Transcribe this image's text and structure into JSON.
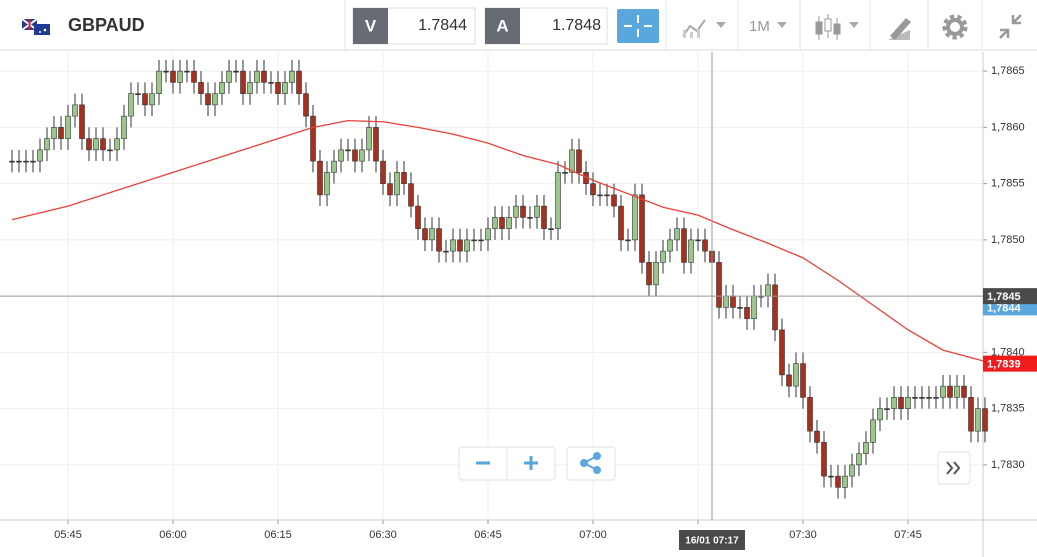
{
  "header": {
    "symbol": "GBPAUD",
    "sell_label": "V",
    "sell_price": "1.7844",
    "buy_label": "A",
    "buy_price": "1.7848",
    "timeframe": "1M"
  },
  "chart_data": {
    "type": "candlestick",
    "up_color": "#9cc78c",
    "down_color": "#a8301f",
    "ma_color": "#e8413a",
    "ylim": [
      1.78251,
      1.78667
    ],
    "yticks": [
      {
        "value": 1.783,
        "label": "1,7830"
      },
      {
        "value": 1.7835,
        "label": "1,7835"
      },
      {
        "value": 1.784,
        "label": "1,7840"
      },
      {
        "value": 1.7845,
        "label": "1,7845"
      },
      {
        "value": 1.785,
        "label": "1,7850"
      },
      {
        "value": 1.7855,
        "label": "1,7855"
      },
      {
        "value": 1.786,
        "label": "1,7860"
      },
      {
        "value": 1.7865,
        "label": "1,7865"
      }
    ],
    "xticks": [
      "05:45",
      "06:00",
      "06:15",
      "06:30",
      "06:45",
      "07:00",
      "07:15",
      "07:30",
      "07:45"
    ],
    "grid": true,
    "categories": [
      "05:37",
      "05:38",
      "05:39",
      "05:40",
      "05:41",
      "05:42",
      "05:43",
      "05:44",
      "05:45",
      "05:46",
      "05:47",
      "05:48",
      "05:49",
      "05:50",
      "05:51",
      "05:52",
      "05:53",
      "05:54",
      "05:55",
      "05:56",
      "05:57",
      "05:58",
      "05:59",
      "06:00",
      "06:01",
      "06:02",
      "06:03",
      "06:04",
      "06:05",
      "06:06",
      "06:07",
      "06:08",
      "06:09",
      "06:10",
      "06:11",
      "06:12",
      "06:13",
      "06:14",
      "06:15",
      "06:16",
      "06:17",
      "06:18",
      "06:19",
      "06:20",
      "06:21",
      "06:22",
      "06:23",
      "06:24",
      "06:25",
      "06:26",
      "06:27",
      "06:28",
      "06:29",
      "06:30",
      "06:31",
      "06:32",
      "06:33",
      "06:34",
      "06:35",
      "06:36",
      "06:37",
      "06:38",
      "06:39",
      "06:40",
      "06:41",
      "06:42",
      "06:43",
      "06:44",
      "06:45",
      "06:46",
      "06:47",
      "06:48",
      "06:49",
      "06:50",
      "06:51",
      "06:52",
      "06:53",
      "06:54",
      "06:55",
      "06:56",
      "06:57",
      "06:58",
      "06:59",
      "07:00",
      "07:01",
      "07:02",
      "07:03",
      "07:04",
      "07:05",
      "07:06",
      "07:07",
      "07:08",
      "07:09",
      "07:10",
      "07:11",
      "07:12",
      "07:13",
      "07:14",
      "07:15",
      "07:16",
      "07:17",
      "07:18",
      "07:19",
      "07:20",
      "07:21",
      "07:22",
      "07:23",
      "07:24",
      "07:25",
      "07:26",
      "07:27",
      "07:28",
      "07:29",
      "07:30",
      "07:31",
      "07:32",
      "07:33",
      "07:34",
      "07:35",
      "07:36",
      "07:37",
      "07:38",
      "07:39",
      "07:40",
      "07:41",
      "07:42",
      "07:43",
      "07:44",
      "07:45",
      "07:46",
      "07:47",
      "07:48",
      "07:49",
      "07:50",
      "07:51",
      "07:52",
      "07:53",
      "07:54",
      "07:55",
      "07:56"
    ],
    "open": [
      1.7857,
      1.7857,
      1.7857,
      1.7857,
      1.7857,
      1.7858,
      1.7859,
      1.786,
      1.7859,
      1.7861,
      1.7862,
      1.7859,
      1.7858,
      1.7859,
      1.7858,
      1.7858,
      1.7859,
      1.7861,
      1.7863,
      1.7863,
      1.7862,
      1.7863,
      1.7865,
      1.7865,
      1.7864,
      1.7865,
      1.7865,
      1.7864,
      1.7863,
      1.7862,
      1.7863,
      1.7864,
      1.7865,
      1.7865,
      1.7863,
      1.7864,
      1.7865,
      1.7864,
      1.7864,
      1.7863,
      1.7864,
      1.7865,
      1.7863,
      1.7861,
      1.7857,
      1.7854,
      1.7856,
      1.7857,
      1.7858,
      1.7858,
      1.7857,
      1.7858,
      1.786,
      1.7857,
      1.7855,
      1.7854,
      1.7856,
      1.7855,
      1.7853,
      1.7851,
      1.785,
      1.7851,
      1.7849,
      1.7849,
      1.785,
      1.7849,
      1.785,
      1.785,
      1.785,
      1.7851,
      1.7852,
      1.7851,
      1.7852,
      1.7853,
      1.7852,
      1.7852,
      1.7853,
      1.7851,
      1.7851,
      1.7856,
      1.7856,
      1.7858,
      1.7856,
      1.7855,
      1.7854,
      1.7854,
      1.7854,
      1.7853,
      1.785,
      1.785,
      1.7854,
      1.7848,
      1.7846,
      1.7848,
      1.7849,
      1.785,
      1.7851,
      1.7848,
      1.785,
      1.785,
      1.7849,
      1.7848,
      1.7844,
      1.7845,
      1.7844,
      1.7844,
      1.7843,
      1.7845,
      1.7845,
      1.7846,
      1.7842,
      1.7838,
      1.7837,
      1.7839,
      1.7836,
      1.7833,
      1.7832,
      1.7829,
      1.7829,
      1.7828,
      1.7829,
      1.783,
      1.7831,
      1.7832,
      1.7834,
      1.7835,
      1.7835,
      1.7836,
      1.7835,
      1.7836,
      1.7836,
      1.7836,
      1.7836,
      1.7836,
      1.7837,
      1.7836,
      1.7837,
      1.7836,
      1.7833,
      1.7835
    ],
    "high": [
      1.7858,
      1.7858,
      1.7858,
      1.7858,
      1.7859,
      1.786,
      1.7861,
      1.7861,
      1.7862,
      1.7863,
      1.7863,
      1.786,
      1.786,
      1.786,
      1.7859,
      1.786,
      1.7862,
      1.7864,
      1.7864,
      1.7864,
      1.7864,
      1.7866,
      1.7866,
      1.7866,
      1.7866,
      1.7866,
      1.7866,
      1.7865,
      1.7864,
      1.7864,
      1.7865,
      1.7866,
      1.7866,
      1.7866,
      1.7865,
      1.7866,
      1.7866,
      1.7865,
      1.7865,
      1.7865,
      1.7866,
      1.7866,
      1.7864,
      1.7862,
      1.7858,
      1.7857,
      1.7858,
      1.7859,
      1.7859,
      1.7859,
      1.7859,
      1.7861,
      1.7861,
      1.7858,
      1.7856,
      1.7857,
      1.7857,
      1.7856,
      1.7854,
      1.7852,
      1.7852,
      1.7852,
      1.785,
      1.7851,
      1.7851,
      1.7851,
      1.7851,
      1.7851,
      1.7852,
      1.7853,
      1.7853,
      1.7853,
      1.7854,
      1.7854,
      1.7853,
      1.7854,
      1.7854,
      1.7852,
      1.7857,
      1.7857,
      1.7859,
      1.7859,
      1.7857,
      1.7856,
      1.7855,
      1.7855,
      1.7855,
      1.7854,
      1.7851,
      1.7855,
      1.7855,
      1.7849,
      1.7849,
      1.785,
      1.7851,
      1.7852,
      1.7852,
      1.7851,
      1.7851,
      1.7851,
      1.785,
      1.7849,
      1.7846,
      1.7846,
      1.7845,
      1.7845,
      1.7846,
      1.7846,
      1.7847,
      1.7847,
      1.7843,
      1.7839,
      1.784,
      1.784,
      1.7837,
      1.7834,
      1.7833,
      1.783,
      1.783,
      1.783,
      1.7831,
      1.7832,
      1.7833,
      1.7835,
      1.7836,
      1.7836,
      1.7837,
      1.7837,
      1.7837,
      1.7837,
      1.7837,
      1.7837,
      1.7837,
      1.7838,
      1.7838,
      1.7838,
      1.7838,
      1.7837,
      1.7836,
      1.7836
    ],
    "low": [
      1.7856,
      1.7856,
      1.7856,
      1.7856,
      1.7856,
      1.7857,
      1.7858,
      1.7858,
      1.7858,
      1.786,
      1.7858,
      1.7857,
      1.7857,
      1.7857,
      1.7857,
      1.7857,
      1.7858,
      1.786,
      1.7862,
      1.7861,
      1.7861,
      1.7862,
      1.7864,
      1.7863,
      1.7863,
      1.7864,
      1.7863,
      1.7862,
      1.7861,
      1.7861,
      1.7862,
      1.7863,
      1.7864,
      1.7862,
      1.7862,
      1.7863,
      1.7863,
      1.7863,
      1.7862,
      1.7862,
      1.7863,
      1.7862,
      1.786,
      1.7856,
      1.7853,
      1.7853,
      1.7855,
      1.7856,
      1.7857,
      1.7856,
      1.7856,
      1.7857,
      1.7856,
      1.7854,
      1.7853,
      1.7853,
      1.7854,
      1.7852,
      1.785,
      1.7849,
      1.7849,
      1.7848,
      1.7848,
      1.7848,
      1.7848,
      1.7848,
      1.7849,
      1.7849,
      1.7849,
      1.785,
      1.785,
      1.785,
      1.7851,
      1.7851,
      1.7851,
      1.7851,
      1.785,
      1.785,
      1.785,
      1.7855,
      1.7855,
      1.7855,
      1.7854,
      1.7853,
      1.7853,
      1.7853,
      1.7852,
      1.7849,
      1.7849,
      1.7849,
      1.7847,
      1.7845,
      1.7845,
      1.7847,
      1.7848,
      1.7849,
      1.7847,
      1.7847,
      1.7849,
      1.7848,
      1.7847,
      1.7843,
      1.7843,
      1.7843,
      1.7843,
      1.7842,
      1.7842,
      1.7844,
      1.7844,
      1.7841,
      1.7837,
      1.7836,
      1.7836,
      1.7835,
      1.7832,
      1.7831,
      1.7828,
      1.7828,
      1.7827,
      1.7827,
      1.7828,
      1.7829,
      1.783,
      1.7831,
      1.7833,
      1.7834,
      1.7834,
      1.7834,
      1.7834,
      1.7835,
      1.7835,
      1.7835,
      1.7835,
      1.7835,
      1.7835,
      1.7835,
      1.7835,
      1.7832,
      1.7832,
      1.7832
    ],
    "close": [
      1.7857,
      1.7857,
      1.7857,
      1.7857,
      1.7858,
      1.7859,
      1.786,
      1.7859,
      1.7861,
      1.7862,
      1.7859,
      1.7858,
      1.7859,
      1.7858,
      1.7858,
      1.7859,
      1.7861,
      1.7863,
      1.7863,
      1.7862,
      1.7863,
      1.7865,
      1.7865,
      1.7864,
      1.7865,
      1.7865,
      1.7864,
      1.7863,
      1.7862,
      1.7863,
      1.7864,
      1.7865,
      1.7865,
      1.7863,
      1.7864,
      1.7865,
      1.7864,
      1.7864,
      1.7863,
      1.7864,
      1.7865,
      1.7863,
      1.7861,
      1.7857,
      1.7854,
      1.7856,
      1.7857,
      1.7858,
      1.7858,
      1.7857,
      1.7858,
      1.786,
      1.7857,
      1.7855,
      1.7854,
      1.7856,
      1.7855,
      1.7853,
      1.7851,
      1.785,
      1.7851,
      1.7849,
      1.7849,
      1.785,
      1.7849,
      1.785,
      1.785,
      1.785,
      1.7851,
      1.7852,
      1.7851,
      1.7852,
      1.7853,
      1.7852,
      1.7852,
      1.7853,
      1.7851,
      1.7851,
      1.7856,
      1.7856,
      1.7858,
      1.7856,
      1.7855,
      1.7854,
      1.7854,
      1.7854,
      1.7853,
      1.785,
      1.785,
      1.7854,
      1.7848,
      1.7846,
      1.7848,
      1.7849,
      1.785,
      1.7851,
      1.7848,
      1.785,
      1.785,
      1.7849,
      1.7848,
      1.7844,
      1.7845,
      1.7844,
      1.7844,
      1.7843,
      1.7845,
      1.7845,
      1.7846,
      1.7842,
      1.7838,
      1.7837,
      1.7839,
      1.7836,
      1.7833,
      1.7832,
      1.7829,
      1.7829,
      1.7828,
      1.7829,
      1.783,
      1.7831,
      1.7832,
      1.7834,
      1.7835,
      1.7835,
      1.7836,
      1.7835,
      1.7836,
      1.7836,
      1.7836,
      1.7836,
      1.7836,
      1.7837,
      1.7836,
      1.7837,
      1.7836,
      1.7833,
      1.7835,
      1.7833
    ],
    "ma": {
      "x": [
        "05:37",
        "05:45",
        "05:50",
        "05:55",
        "06:00",
        "06:05",
        "06:10",
        "06:15",
        "06:20",
        "06:25",
        "06:30",
        "06:35",
        "06:40",
        "06:45",
        "06:50",
        "06:55",
        "07:00",
        "07:05",
        "07:10",
        "07:15",
        "07:20",
        "07:25",
        "07:30",
        "07:35",
        "07:40",
        "07:45",
        "07:50",
        "07:56"
      ],
      "values": [
        1.78518,
        1.7853,
        1.7854,
        1.7855,
        1.7856,
        1.7857,
        1.7858,
        1.7859,
        1.786,
        1.78606,
        1.78605,
        1.786,
        1.78594,
        1.78586,
        1.78575,
        1.78567,
        1.78553,
        1.78541,
        1.78529,
        1.78522,
        1.78509,
        1.78497,
        1.78484,
        1.78464,
        1.78442,
        1.7842,
        1.78402,
        1.78392
      ]
    },
    "price_badges": [
      {
        "value": 1.7844,
        "label": "1,7844",
        "color": "#5aa7de"
      },
      {
        "value": 1.7845,
        "label": "1,7845",
        "color": "#4a4a4a"
      },
      {
        "value": 1.7839,
        "label": "1,7839",
        "color": "#ee1c1c"
      }
    ],
    "crosshair_label": "16/01 07:17"
  }
}
